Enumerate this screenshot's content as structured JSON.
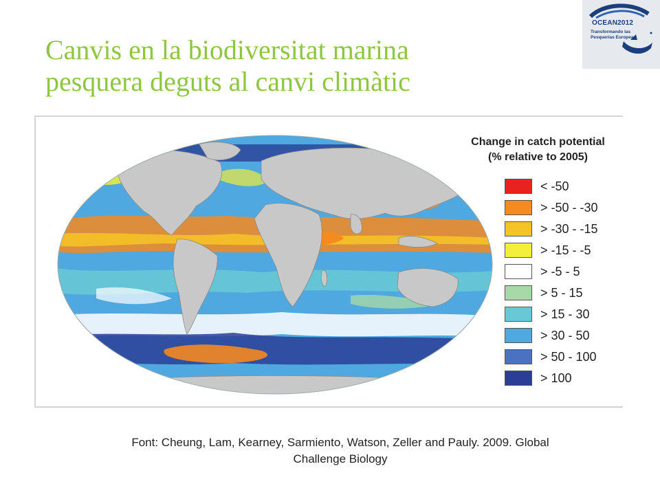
{
  "slide": {
    "title_line1": "Canvis en la biodiversitat marina",
    "title_line2": "pesquera deguts al canvi climàtic"
  },
  "logo": {
    "name": "OCEAN2012",
    "tagline_line1": "Transformando las",
    "tagline_line2": "Pesquerías Europeas"
  },
  "legend": {
    "title_line1": "Change in catch potential",
    "title_line2": "(% relative to 2005)",
    "items": [
      {
        "label": "< -50",
        "color": "#e8231f"
      },
      {
        "label": "> -50 - -30",
        "color": "#f58a1f"
      },
      {
        "label": "> -30 - -15",
        "color": "#f5c227"
      },
      {
        "label": "> -15 - -5",
        "color": "#f2ee3a"
      },
      {
        "label": "> -5 - 5",
        "color": "#ffffff"
      },
      {
        "label": "> 5 - 15",
        "color": "#a6d8a8"
      },
      {
        "label": "> 15 - 30",
        "color": "#67c8d6"
      },
      {
        "label": "> 30 - 50",
        "color": "#4fa8e0"
      },
      {
        "label": "> 50 - 100",
        "color": "#4a72c0"
      },
      {
        "label": "> 100",
        "color": "#2a3e96"
      }
    ]
  },
  "source": {
    "line1": "Font: Cheung, Lam, Kearney, Sarmiento, Watson, Zeller and Pauly. 2009. Global",
    "line2": "Challenge Biology"
  },
  "colors": {
    "title": "#8dc63f",
    "land": "#c8c8c8",
    "ocean_base": "#4fa8e0"
  }
}
